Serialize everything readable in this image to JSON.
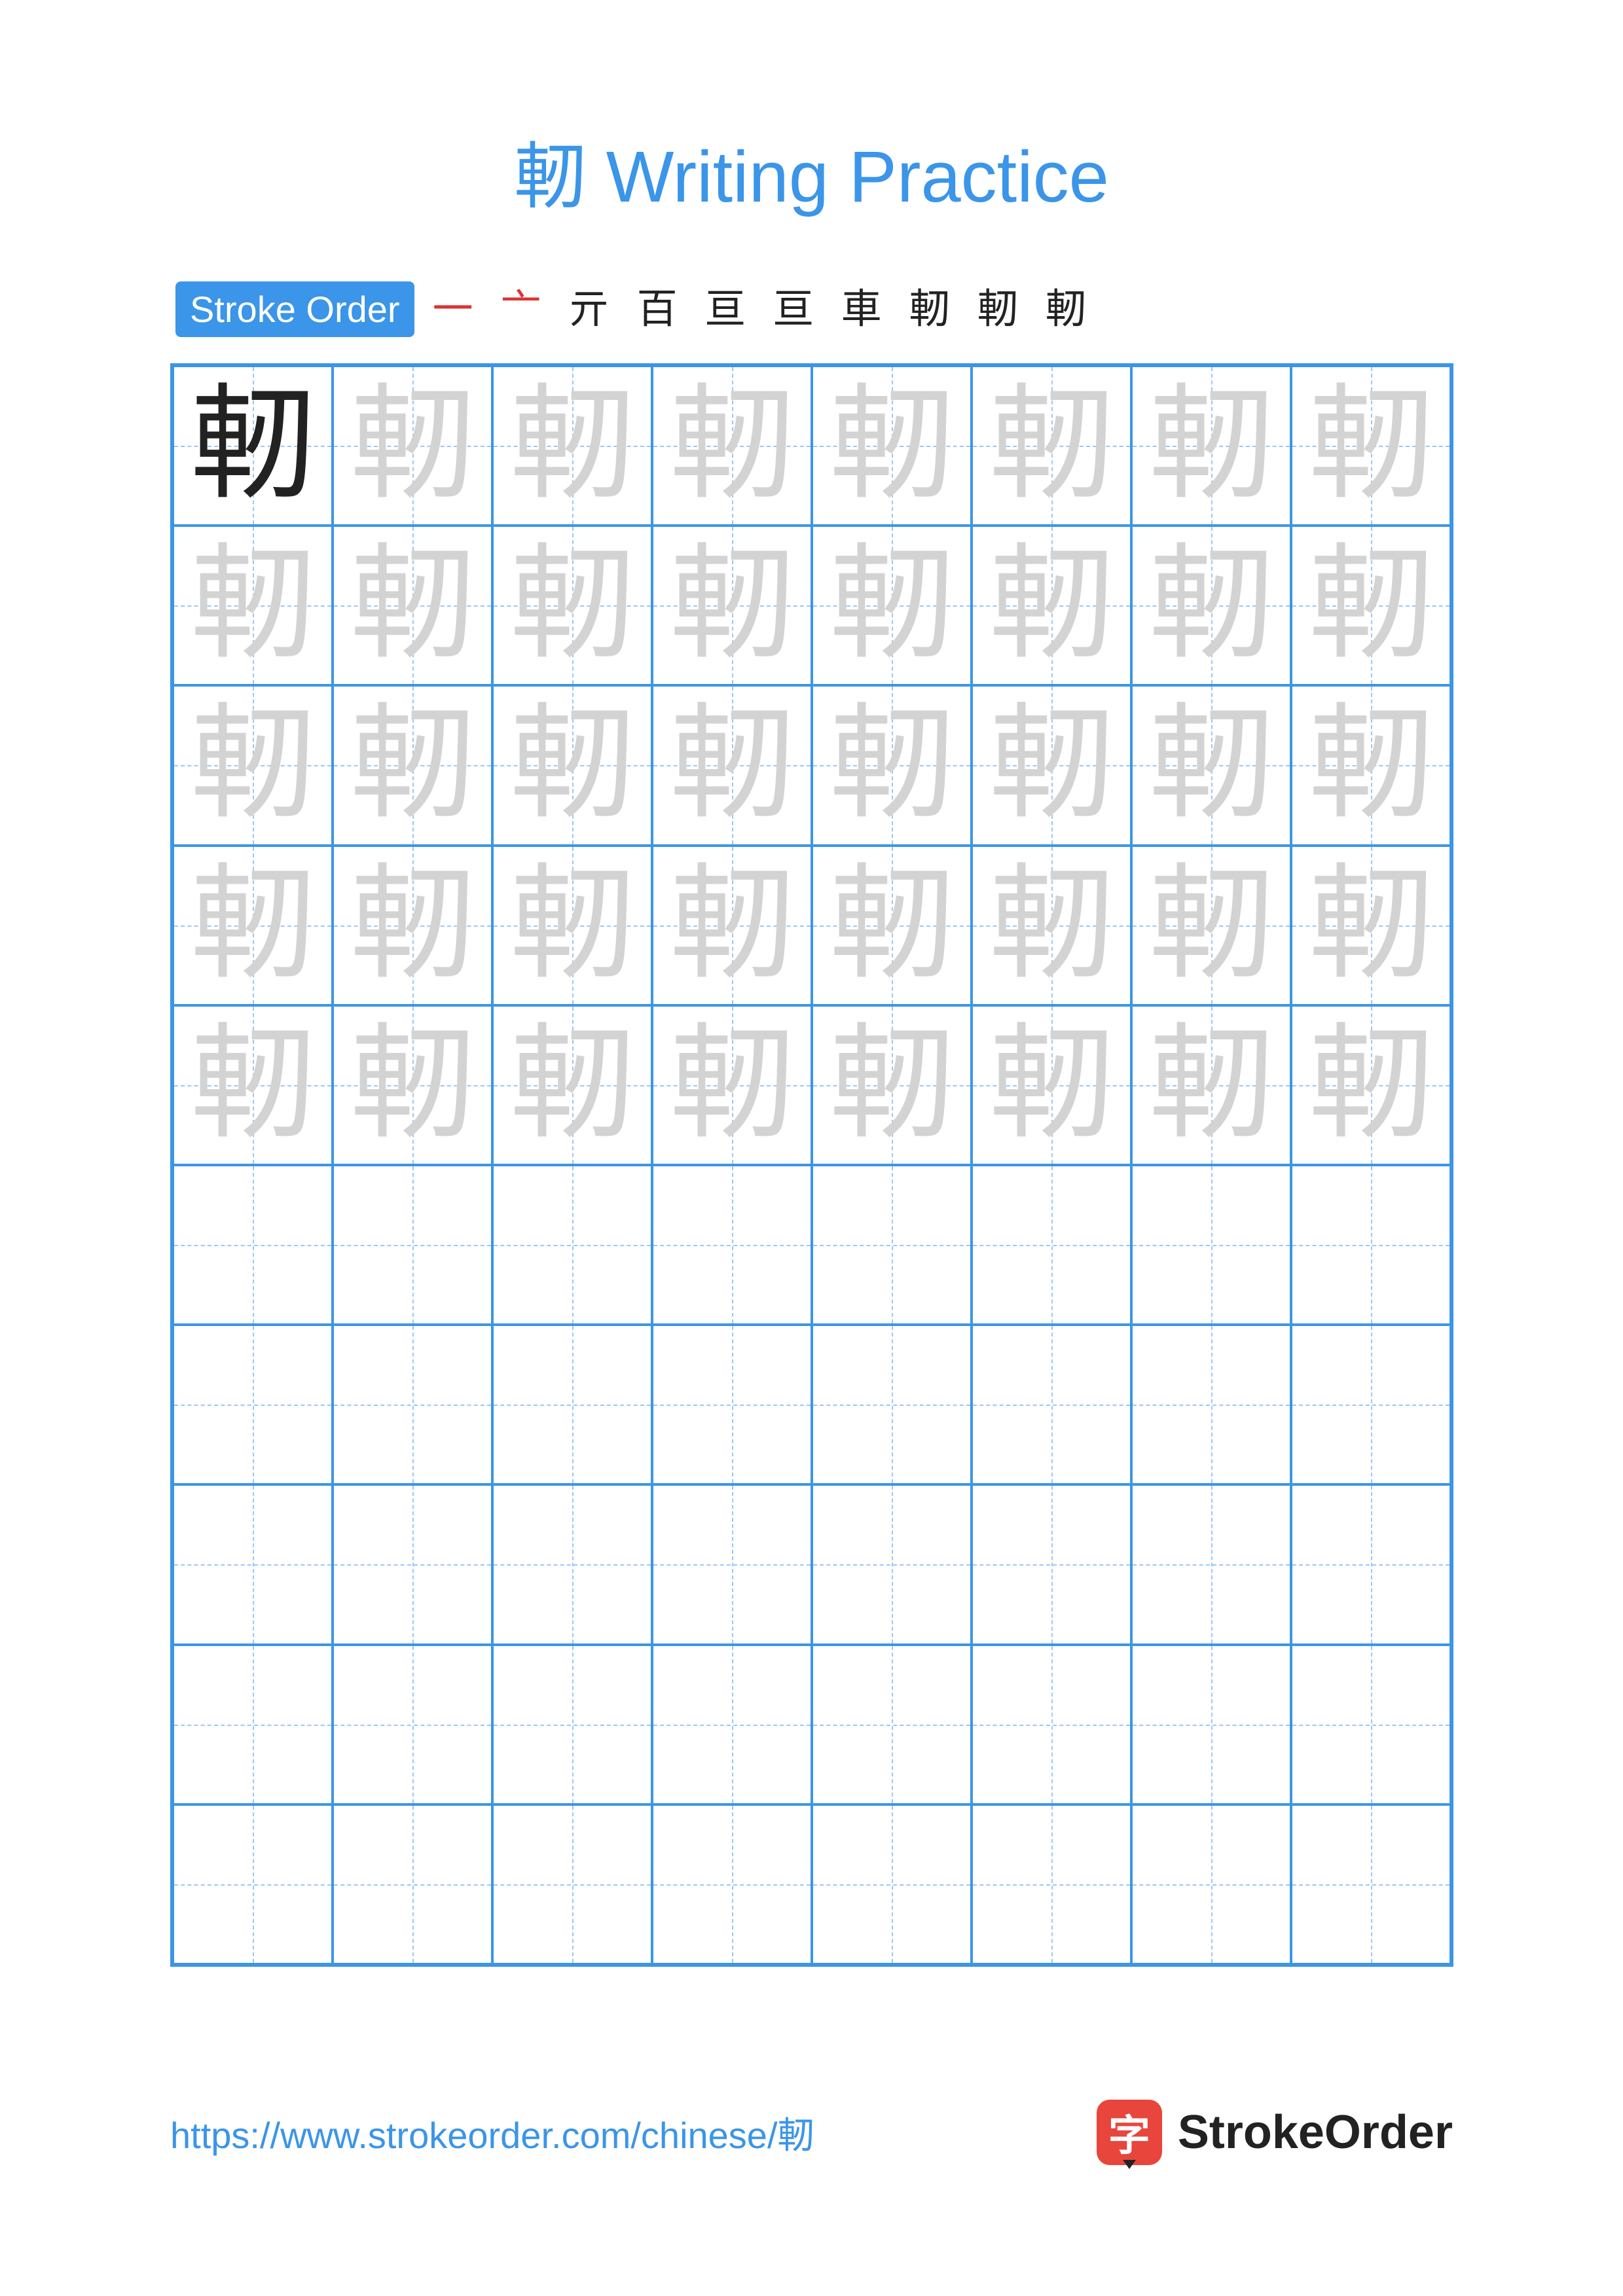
{
  "title": "軔 Writing Practice",
  "title_color": "#3b95e8",
  "stroke_label": "Stroke Order",
  "stroke_label_bg": "#3b95e8",
  "character": "軔",
  "stroke_steps": [
    {
      "glyph": "一",
      "color": "#d33"
    },
    {
      "glyph": "亠",
      "color": "#d33"
    },
    {
      "glyph": "亓",
      "color": "#222"
    },
    {
      "glyph": "百",
      "color": "#222"
    },
    {
      "glyph": "亘",
      "color": "#222"
    },
    {
      "glyph": "亘",
      "color": "#222"
    },
    {
      "glyph": "車",
      "color": "#222"
    },
    {
      "glyph": "軔",
      "color": "#222"
    },
    {
      "glyph": "軔",
      "color": "#222"
    },
    {
      "glyph": "軔",
      "color": "#222"
    }
  ],
  "grid": {
    "rows": 10,
    "cols": 8,
    "border_color": "#3b95e8",
    "guide_color": "#9cc8f2",
    "guide_char_color": "#d3d3d3",
    "solid_char_color": "#222222",
    "filled_rows": 5
  },
  "footer": {
    "url": "https://www.strokeorder.com/chinese/軔",
    "url_color": "#3b95e8",
    "brand_icon_bg": "#e8453c",
    "brand_icon_char": "字",
    "brand_text": "StrokeOrder",
    "brand_text_color": "#222222"
  }
}
